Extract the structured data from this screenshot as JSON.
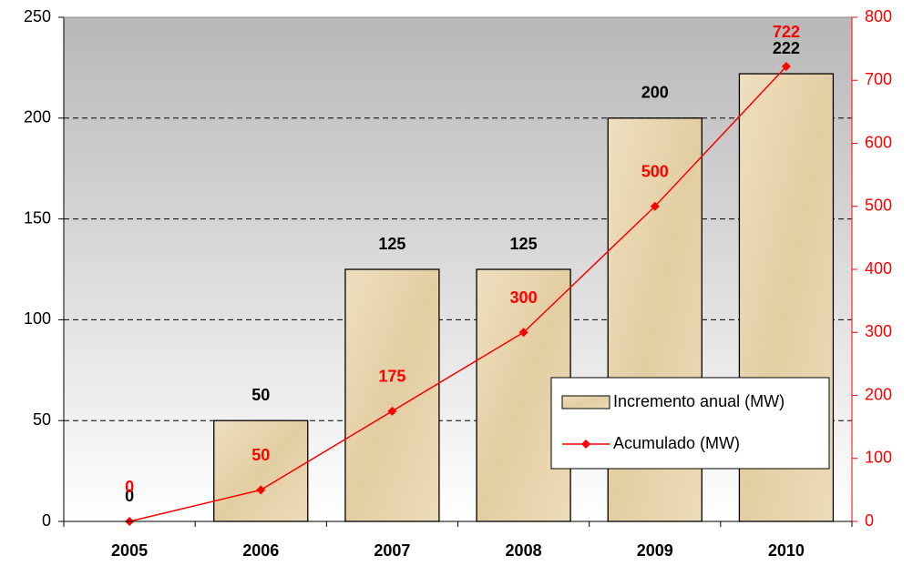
{
  "chart_data": {
    "type": "bar",
    "categories": [
      "2005",
      "2006",
      "2007",
      "2008",
      "2009",
      "2010"
    ],
    "series": [
      {
        "name": "Incremento anual (MW)",
        "type": "bar",
        "color": "#e6d2a8",
        "values": [
          0,
          50,
          125,
          125,
          200,
          222
        ]
      },
      {
        "name": "Acumulado (MW)",
        "type": "line",
        "color": "#ff0000",
        "axis": "y2",
        "values": [
          0,
          50,
          175,
          300,
          500,
          722
        ]
      }
    ],
    "ylim": [
      0,
      250
    ],
    "yticks": [
      0,
      50,
      100,
      150,
      200,
      250
    ],
    "y2lim": [
      0,
      800
    ],
    "y2ticks": [
      0,
      100,
      200,
      300,
      400,
      500,
      600,
      700,
      800
    ],
    "grid": true,
    "legend": "lower right"
  }
}
